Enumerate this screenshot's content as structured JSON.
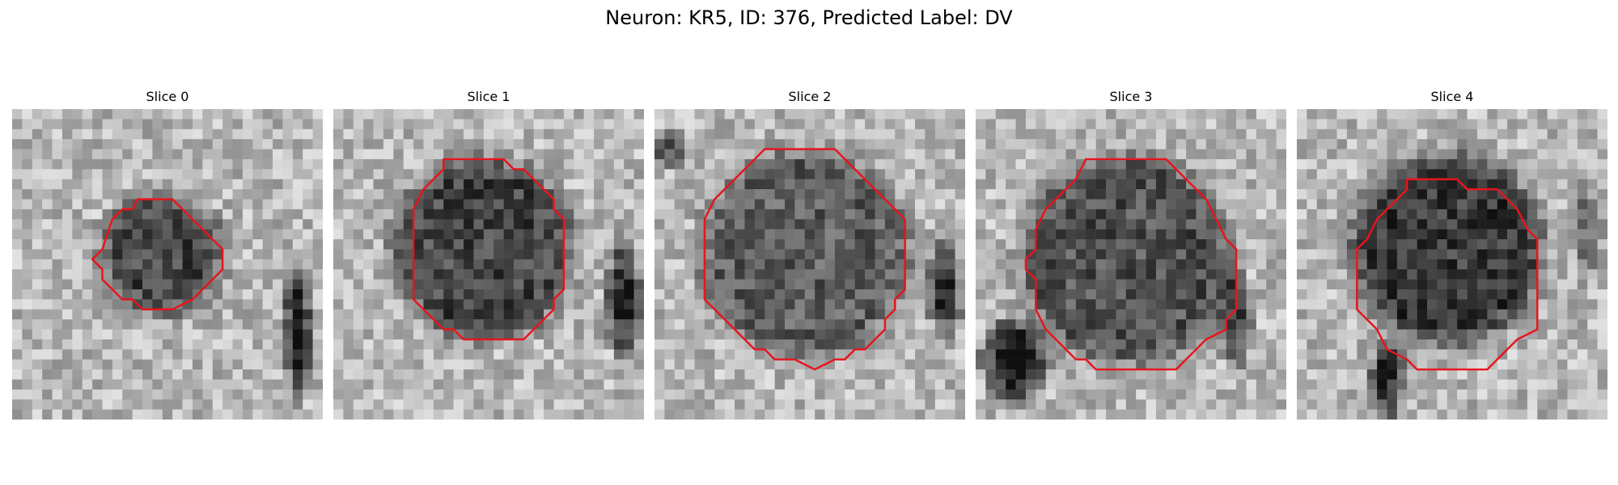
{
  "figure": {
    "title": "Neuron: KR5, ID: 376, Predicted Label: DV"
  },
  "colors": {
    "background": "#ffffff",
    "contour": "#e8141c",
    "grayscale_dark": "#141414",
    "grayscale_light": "#f2f2f2"
  },
  "image_grid": {
    "columns": 31,
    "rows": 31,
    "colormap": "gray"
  },
  "panels": [
    {
      "title": "Slice 0",
      "blob": {
        "cx": 15,
        "cy": 14.5,
        "r": 5.5,
        "dark": 0.45
      },
      "shadows": [
        {
          "x": 28.5,
          "y": 22,
          "rx": 1.5,
          "ry": 8,
          "dark": 0.75
        }
      ],
      "contour": [
        [
          12.5,
          9
        ],
        [
          16,
          9
        ],
        [
          18,
          11
        ],
        [
          20,
          13
        ],
        [
          21,
          14
        ],
        [
          21,
          16
        ],
        [
          19,
          18
        ],
        [
          18,
          19
        ],
        [
          16,
          20
        ],
        [
          13,
          20
        ],
        [
          12,
          19
        ],
        [
          11,
          19
        ],
        [
          9,
          17
        ],
        [
          9,
          16
        ],
        [
          8,
          15
        ],
        [
          9,
          14
        ],
        [
          10,
          11
        ],
        [
          11,
          10
        ],
        [
          12,
          10
        ]
      ]
    },
    {
      "title": "Slice 1",
      "blob": {
        "cx": 15,
        "cy": 14,
        "r": 8.5,
        "dark": 0.45
      },
      "shadows": [
        {
          "x": 29,
          "y": 19,
          "rx": 2,
          "ry": 7,
          "dark": 0.65
        }
      ],
      "contour": [
        [
          11,
          5
        ],
        [
          17,
          5
        ],
        [
          18,
          6
        ],
        [
          19,
          6
        ],
        [
          20,
          7
        ],
        [
          22,
          9
        ],
        [
          22,
          10
        ],
        [
          23,
          11
        ],
        [
          23,
          18
        ],
        [
          22,
          19
        ],
        [
          22,
          20
        ],
        [
          20,
          22
        ],
        [
          19,
          23
        ],
        [
          13,
          23
        ],
        [
          12,
          22
        ],
        [
          11,
          22
        ],
        [
          10,
          21
        ],
        [
          9,
          20
        ],
        [
          8,
          19
        ],
        [
          8,
          10
        ],
        [
          9,
          8
        ],
        [
          10,
          7
        ],
        [
          11,
          6
        ]
      ]
    },
    {
      "title": "Slice 2",
      "blob": {
        "cx": 15,
        "cy": 14.5,
        "r": 10,
        "dark": 0.35
      },
      "shadows": [
        {
          "x": 29,
          "y": 18,
          "rx": 2,
          "ry": 6,
          "dark": 0.6
        },
        {
          "x": 1,
          "y": 4,
          "rx": 3,
          "ry": 2,
          "dark": 0.4
        }
      ],
      "contour": [
        [
          11,
          4
        ],
        [
          18,
          4
        ],
        [
          19,
          5
        ],
        [
          20,
          6
        ],
        [
          21,
          7
        ],
        [
          22,
          8
        ],
        [
          23,
          9
        ],
        [
          24,
          10
        ],
        [
          25,
          11
        ],
        [
          25,
          18
        ],
        [
          24,
          19
        ],
        [
          24,
          20
        ],
        [
          23,
          21
        ],
        [
          23,
          22
        ],
        [
          22,
          23
        ],
        [
          21,
          24
        ],
        [
          20,
          24
        ],
        [
          19,
          25
        ],
        [
          18,
          25
        ],
        [
          17,
          25.5
        ],
        [
          16,
          26
        ],
        [
          15,
          25.5
        ],
        [
          14,
          25
        ],
        [
          12,
          25
        ],
        [
          11,
          24
        ],
        [
          10,
          24
        ],
        [
          9,
          23
        ],
        [
          8,
          22
        ],
        [
          7,
          21
        ],
        [
          6,
          20
        ],
        [
          5,
          19
        ],
        [
          5,
          11
        ],
        [
          6,
          9
        ],
        [
          8,
          7
        ],
        [
          9,
          6
        ],
        [
          10,
          5
        ]
      ]
    },
    {
      "title": "Slice 3",
      "blob": {
        "cx": 15,
        "cy": 15,
        "r": 10,
        "dark": 0.4
      },
      "shadows": [
        {
          "x": 4,
          "y": 25,
          "rx": 4,
          "ry": 5,
          "dark": 0.75
        },
        {
          "x": 26,
          "y": 21,
          "rx": 2,
          "ry": 6,
          "dark": 0.5
        }
      ],
      "contour": [
        [
          11,
          5
        ],
        [
          19,
          5
        ],
        [
          20,
          6
        ],
        [
          22,
          8
        ],
        [
          23,
          9
        ],
        [
          24,
          11
        ],
        [
          25,
          13
        ],
        [
          26,
          14
        ],
        [
          26,
          20
        ],
        [
          25,
          21
        ],
        [
          25,
          22
        ],
        [
          23,
          23
        ],
        [
          22,
          24
        ],
        [
          21,
          25
        ],
        [
          20,
          26
        ],
        [
          12,
          26
        ],
        [
          11,
          25
        ],
        [
          10,
          25
        ],
        [
          9,
          24
        ],
        [
          8,
          23
        ],
        [
          7,
          22
        ],
        [
          6,
          20
        ],
        [
          6,
          17
        ],
        [
          5,
          16
        ],
        [
          5,
          15
        ],
        [
          6,
          14
        ],
        [
          6,
          12
        ],
        [
          7,
          10
        ],
        [
          8,
          9
        ],
        [
          9,
          8
        ],
        [
          10,
          7
        ]
      ]
    },
    {
      "title": "Slice 4",
      "blob": {
        "cx": 15,
        "cy": 14,
        "r": 9,
        "dark": 0.5
      },
      "shadows": [
        {
          "x": 9,
          "y": 27,
          "rx": 2,
          "ry": 5,
          "dark": 0.6
        },
        {
          "x": 29,
          "y": 12,
          "rx": 2,
          "ry": 6,
          "dark": 0.3
        }
      ],
      "contour": [
        [
          11,
          7
        ],
        [
          16,
          7
        ],
        [
          17,
          8
        ],
        [
          20,
          8
        ],
        [
          21,
          9
        ],
        [
          22,
          10
        ],
        [
          23,
          12
        ],
        [
          24,
          13
        ],
        [
          24,
          22
        ],
        [
          22,
          23
        ],
        [
          21,
          24
        ],
        [
          20,
          25
        ],
        [
          19,
          26
        ],
        [
          12,
          26
        ],
        [
          11,
          25
        ],
        [
          9,
          24
        ],
        [
          8,
          22
        ],
        [
          7,
          21
        ],
        [
          6,
          20
        ],
        [
          6,
          14
        ],
        [
          7,
          13
        ],
        [
          8,
          11
        ],
        [
          9,
          10
        ],
        [
          10,
          9
        ],
        [
          11,
          8
        ]
      ]
    }
  ]
}
